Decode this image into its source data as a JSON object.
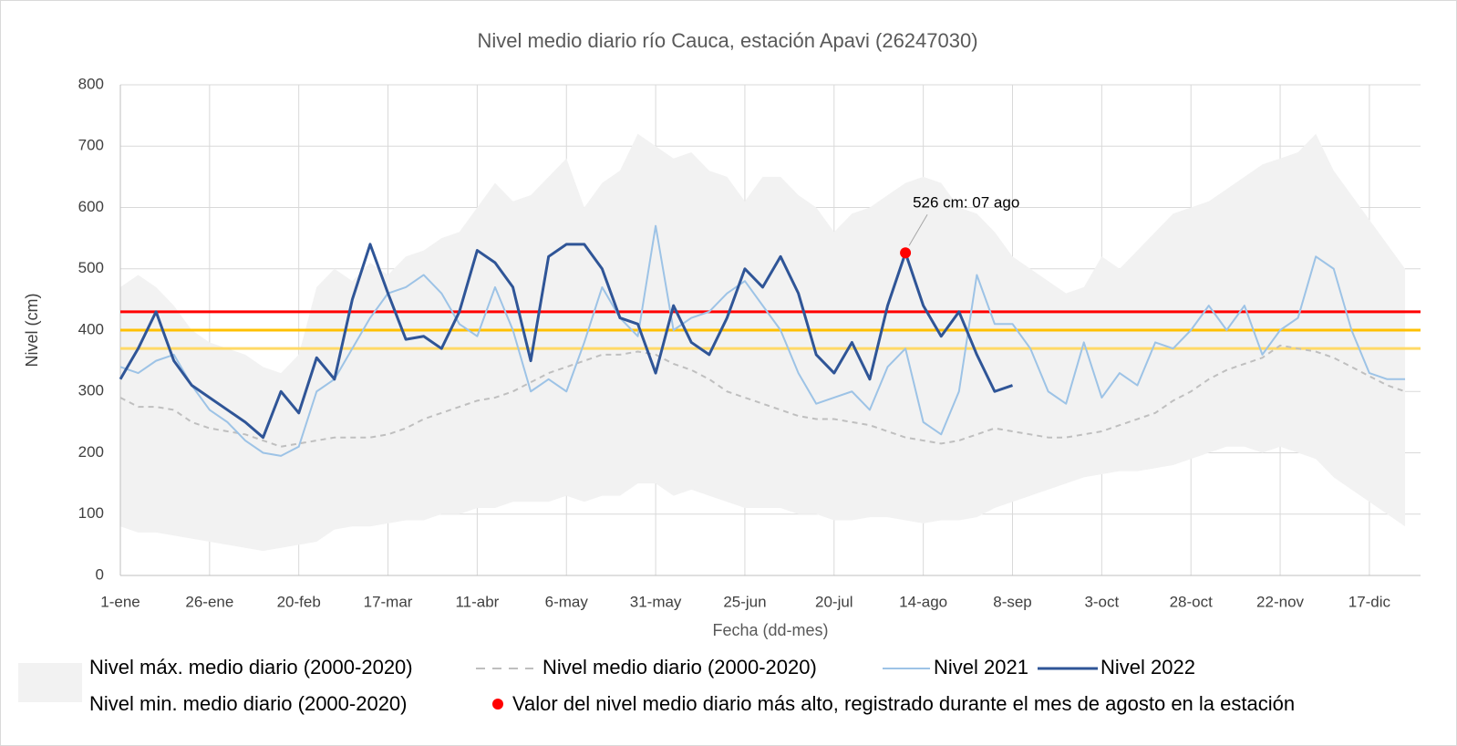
{
  "chart_data": {
    "type": "line",
    "title": "Nivel medio diario río Cauca, estación Apavi (26247030)",
    "y_label": "Nivel (cm)",
    "x_label": "Fecha (dd-mes)",
    "ylim": [
      0,
      800
    ],
    "yticks": [
      0,
      100,
      200,
      300,
      400,
      500,
      600,
      700,
      800
    ],
    "grid": true,
    "categories": [
      "1-ene",
      null,
      null,
      null,
      null,
      "26-ene",
      null,
      null,
      null,
      null,
      "20-feb",
      null,
      null,
      null,
      null,
      "17-mar",
      null,
      null,
      null,
      null,
      "11-abr",
      null,
      null,
      null,
      null,
      "6-may",
      null,
      null,
      null,
      null,
      "31-may",
      null,
      null,
      null,
      null,
      "25-jun",
      null,
      null,
      null,
      null,
      "20-jul",
      null,
      null,
      null,
      null,
      "14-ago",
      null,
      null,
      null,
      null,
      "8-sep",
      null,
      null,
      null,
      null,
      "3-oct",
      null,
      null,
      null,
      null,
      "28-oct",
      null,
      null,
      null,
      null,
      "22-nov",
      null,
      null,
      null,
      null,
      "17-dic",
      null,
      null
    ],
    "band": {
      "color": "#f2f2f2",
      "upper": {
        "name": "Nivel máx. medio diario (2000-2020)",
        "values": [
          470,
          490,
          470,
          440,
          400,
          380,
          370,
          360,
          340,
          330,
          360,
          470,
          500,
          480,
          510,
          490,
          520,
          530,
          550,
          560,
          600,
          640,
          610,
          620,
          650,
          680,
          600,
          640,
          660,
          720,
          700,
          680,
          690,
          660,
          650,
          610,
          650,
          650,
          620,
          600,
          560,
          590,
          600,
          620,
          640,
          650,
          640,
          600,
          590,
          560,
          520,
          500,
          480,
          460,
          470,
          520,
          500,
          530,
          560,
          590,
          600,
          610,
          630,
          650,
          670,
          680,
          690,
          720,
          660,
          620,
          580,
          540,
          500
        ]
      },
      "lower": {
        "name": "Nivel min. medio diario (2000-2020)",
        "values": [
          80,
          70,
          70,
          65,
          60,
          55,
          50,
          45,
          40,
          45,
          50,
          55,
          75,
          80,
          80,
          85,
          90,
          90,
          100,
          100,
          110,
          110,
          120,
          120,
          120,
          130,
          120,
          130,
          130,
          150,
          150,
          130,
          140,
          130,
          120,
          110,
          110,
          110,
          100,
          100,
          90,
          90,
          95,
          95,
          90,
          85,
          90,
          90,
          95,
          110,
          120,
          130,
          140,
          150,
          160,
          165,
          170,
          170,
          175,
          180,
          190,
          200,
          210,
          210,
          200,
          210,
          200,
          190,
          160,
          140,
          120,
          100,
          80
        ]
      }
    },
    "series": [
      {
        "name": "Nivel medio diario (2000-2020)",
        "color": "#bfbfbf",
        "dashed": true,
        "values": [
          290,
          275,
          275,
          270,
          250,
          240,
          235,
          230,
          220,
          210,
          215,
          220,
          225,
          225,
          225,
          230,
          240,
          255,
          265,
          275,
          285,
          290,
          300,
          315,
          330,
          340,
          350,
          360,
          360,
          365,
          360,
          345,
          335,
          320,
          300,
          290,
          280,
          270,
          260,
          255,
          255,
          250,
          245,
          235,
          225,
          220,
          215,
          220,
          230,
          240,
          235,
          230,
          225,
          225,
          230,
          235,
          245,
          255,
          265,
          285,
          300,
          320,
          335,
          345,
          355,
          375,
          370,
          365,
          355,
          340,
          325,
          310,
          300
        ]
      },
      {
        "name": "Nivel 2021",
        "color": "#9dc3e6",
        "width": 2,
        "values": [
          340,
          330,
          350,
          360,
          310,
          270,
          250,
          220,
          200,
          195,
          210,
          300,
          320,
          370,
          420,
          460,
          470,
          490,
          460,
          410,
          390,
          470,
          400,
          300,
          320,
          300,
          380,
          470,
          420,
          390,
          570,
          400,
          420,
          430,
          460,
          480,
          440,
          400,
          330,
          280,
          290,
          300,
          270,
          340,
          370,
          250,
          230,
          300,
          490,
          410,
          410,
          370,
          300,
          280,
          380,
          290,
          330,
          310,
          380,
          370,
          400,
          440,
          400,
          440,
          360,
          400,
          420,
          520,
          500,
          400,
          330,
          320,
          320
        ]
      },
      {
        "name": "Nivel 2022",
        "color": "#2f5597",
        "width": 3,
        "values": [
          320,
          370,
          430,
          350,
          310,
          290,
          270,
          250,
          225,
          300,
          265,
          355,
          320,
          450,
          540,
          460,
          385,
          390,
          370,
          430,
          530,
          510,
          470,
          350,
          520,
          540,
          540,
          500,
          420,
          410,
          330,
          440,
          380,
          360,
          420,
          500,
          470,
          520,
          460,
          360,
          330,
          380,
          320,
          440,
          526,
          440,
          390,
          430,
          360,
          300,
          310,
          null,
          null,
          null,
          null,
          null,
          null,
          null,
          null,
          null,
          null,
          null,
          null,
          null,
          null,
          null,
          null,
          null,
          null,
          null,
          null,
          null,
          null
        ]
      }
    ],
    "hlines": [
      {
        "value": 430,
        "color": "#ff0000"
      },
      {
        "value": 400,
        "color": "#ffc000"
      },
      {
        "value": 370,
        "color": "#ffd966"
      }
    ],
    "highlight": {
      "name": "Valor del nivel medio diario más alto, registrado durante el mes de agosto en la estación",
      "color": "#ff0000",
      "index": 44,
      "value": 526,
      "value_label": "526 cm: 07 ago"
    }
  }
}
